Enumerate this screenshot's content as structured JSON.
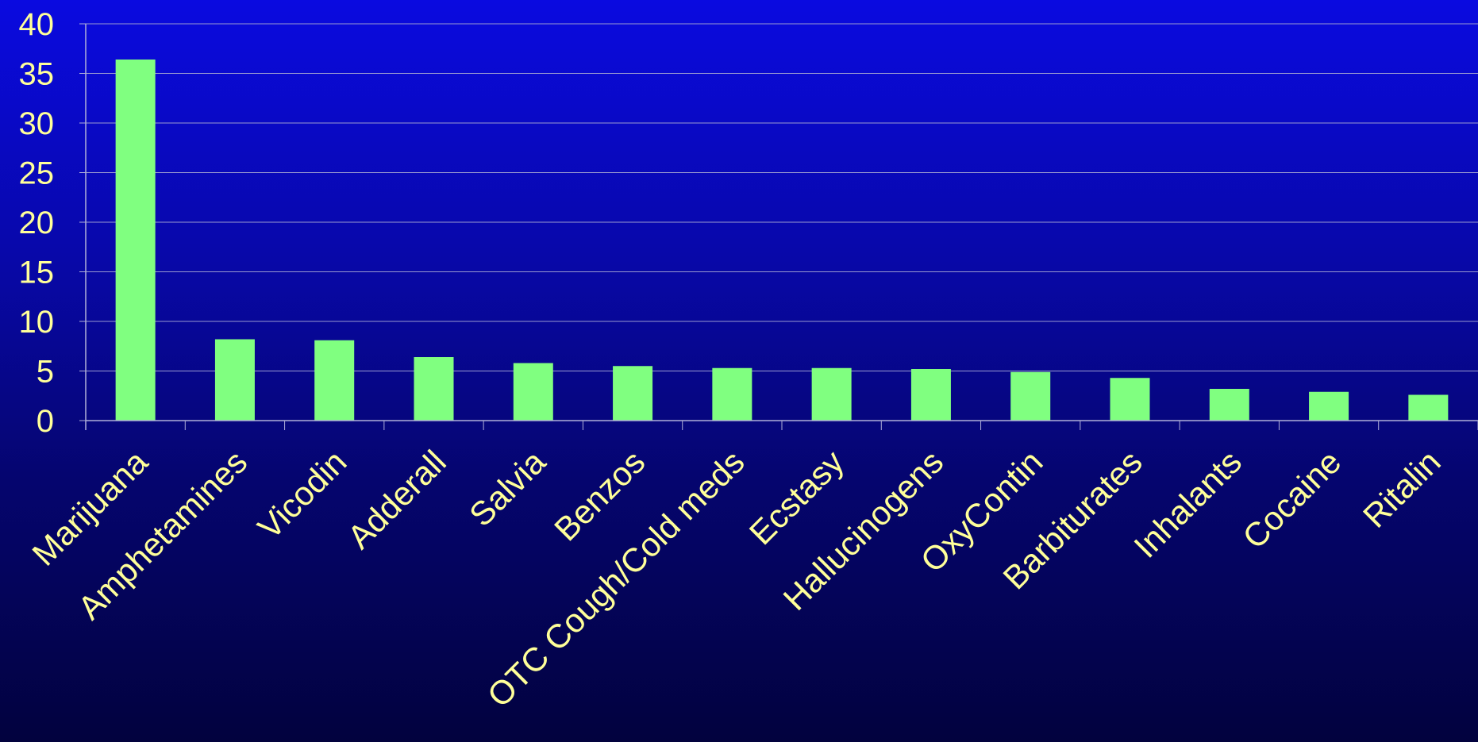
{
  "chart_data": {
    "type": "bar",
    "categories": [
      "Marijuana",
      "Amphetamines",
      "Vicodin",
      "Adderall",
      "Salvia",
      "Benzos",
      "OTC Cough/Cold meds",
      "Ecstasy",
      "Hallucinogens",
      "OxyContin",
      "Barbiturates",
      "Inhalants",
      "Cocaine",
      "Ritalin"
    ],
    "values": [
      36.4,
      8.2,
      8.1,
      6.4,
      5.8,
      5.5,
      5.3,
      5.3,
      5.2,
      4.9,
      4.3,
      3.2,
      2.9,
      2.6
    ],
    "title": "",
    "xlabel": "",
    "ylabel": "",
    "ylim": [
      0,
      40
    ],
    "yticks": [
      "0",
      "5",
      "10",
      "15",
      "20",
      "25",
      "30",
      "35",
      "40"
    ],
    "grid": true,
    "legend": "none",
    "colors": {
      "bar": "#80ff80",
      "text": "#ffff99",
      "grid": "#9a9ad0",
      "axis": "#b0b0d8"
    }
  }
}
